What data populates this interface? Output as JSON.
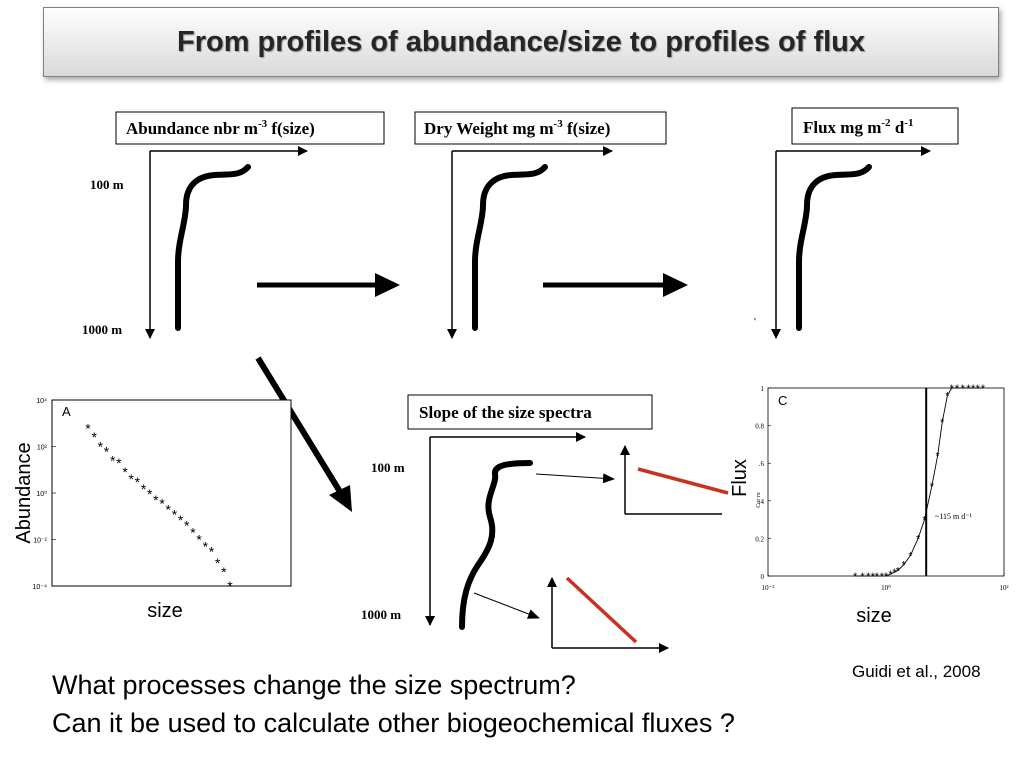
{
  "title": "From profiles of abundance/size to profiles of flux",
  "panels": {
    "abundance": {
      "label": "Abundance nbr m",
      "sup": "-3",
      "suffix": " f(size)",
      "depth_top": "100 m",
      "depth_bottom": "1000 m"
    },
    "dry_weight": {
      "label": "Dry Weight mg m",
      "sup": "-3",
      "suffix": " f(size)"
    },
    "flux": {
      "label": "Flux mg m",
      "sup1": "-2",
      "mid": " d",
      "sup2": "-1"
    },
    "slope": {
      "label": "Slope of the size spectra",
      "depth_top": "100 m",
      "depth_bottom": "1000 m"
    }
  },
  "plot_a": {
    "panel_letter": "A",
    "ylabel": "Abundance",
    "xlabel": "size",
    "yticks": [
      "10⁴",
      "10²",
      "10⁰",
      "10⁻²",
      "10⁻⁴"
    ]
  },
  "plot_c": {
    "panel_letter": "C",
    "ylabel": "Flux",
    "ylabel_small": "Cur          rx",
    "xlabel": "size",
    "yticks": [
      "1",
      "0.8",
      ".6",
      ".4",
      "0.2",
      "0"
    ],
    "xticks": [
      "10⁻²",
      "10⁰",
      "10²"
    ],
    "annotation": "~115 m d⁻¹"
  },
  "questions": [
    "What processes change the size spectrum?",
    "Can it be used to calculate other biogeochemical fluxes ?"
  ],
  "citation": "Guidi et al., 2008",
  "colors": {
    "red_line": "#c8321e",
    "title_text": "#262626"
  },
  "chart_data": [
    {
      "type": "scatter",
      "panel": "A",
      "ylabel": "Abundance",
      "xlabel": "size",
      "yscale": "log",
      "ylim": [
        0.0001,
        10000
      ],
      "x": [
        1,
        2,
        3,
        4,
        5,
        6,
        7,
        8,
        9,
        10,
        11,
        12,
        13,
        14,
        15,
        16,
        17,
        18,
        19,
        20,
        21,
        22,
        23,
        24
      ],
      "y": [
        600,
        250,
        100,
        60,
        25,
        20,
        8,
        4,
        3,
        1.5,
        0.9,
        0.5,
        0.35,
        0.2,
        0.12,
        0.07,
        0.04,
        0.02,
        0.01,
        0.005,
        0.003,
        0.001,
        0.0004,
        0.0001
      ]
    },
    {
      "type": "line",
      "panel": "C",
      "ylabel": "Flux",
      "xlabel": "size",
      "xscale": "log",
      "xlim": [
        0.01,
        100
      ],
      "ylim": [
        0,
        1
      ],
      "x": [
        0.3,
        0.4,
        0.5,
        0.6,
        0.7,
        0.85,
        1.0,
        1.2,
        1.4,
        1.6,
        2,
        2.6,
        3.5,
        4.5,
        6,
        7.5,
        9,
        11,
        13,
        16,
        20,
        25,
        30,
        36,
        44
      ],
      "y": [
        0,
        0,
        0,
        0,
        0,
        0,
        0,
        0.01,
        0.02,
        0.03,
        0.06,
        0.11,
        0.2,
        0.3,
        0.48,
        0.64,
        0.82,
        0.96,
        1,
        1,
        1,
        1,
        1,
        1,
        1
      ],
      "vertical_line_x": 4.8
    }
  ]
}
